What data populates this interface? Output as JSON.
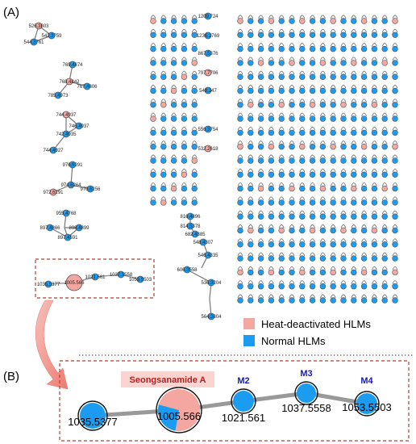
{
  "panels": {
    "a": "(A)",
    "b": "(B)"
  },
  "legend": {
    "heat": {
      "label": "Heat-deactivated HLMs",
      "color": "#f4a6a0"
    },
    "normal": {
      "label": "Normal HLMs",
      "color": "#1c9cf0"
    }
  },
  "panel_a": {
    "left_nodes": [
      {
        "label": "526.3803",
        "kind": "heat"
      },
      {
        "label": "542.3759",
        "kind": "normal"
      },
      {
        "label": "544.3761",
        "kind": "normal"
      },
      {
        "label": "769.4874",
        "kind": "normal"
      },
      {
        "label": "768.4842",
        "kind": "heat"
      },
      {
        "label": "767.4806",
        "kind": "normal"
      },
      {
        "label": "785.4973",
        "kind": "normal"
      },
      {
        "label": "744.4937",
        "kind": "heat"
      },
      {
        "label": "746.4937",
        "kind": "normal"
      },
      {
        "label": "742.4935",
        "kind": "normal"
      },
      {
        "label": "744.4927",
        "kind": "normal"
      },
      {
        "label": "976.6291",
        "kind": "normal"
      },
      {
        "label": "974.6264",
        "kind": "normal"
      },
      {
        "label": "972.6291",
        "kind": "heat"
      },
      {
        "label": "970.6256",
        "kind": "normal"
      },
      {
        "label": "955.4768",
        "kind": "normal"
      },
      {
        "label": "897.4866",
        "kind": "normal"
      },
      {
        "label": "898.4899",
        "kind": "normal"
      },
      {
        "label": "897.4591",
        "kind": "normal"
      }
    ],
    "highlight_nodes": [
      {
        "label": "1035.5377",
        "kind": "normal"
      },
      {
        "label": "1005.566",
        "kind": "heat"
      },
      {
        "label": "1021.561",
        "kind": "normal"
      },
      {
        "label": "1037.5558",
        "kind": "normal"
      },
      {
        "label": "1053.5503",
        "kind": "normal"
      }
    ],
    "middle_nodes": [
      {
        "label": "1209.724",
        "kind": "normal"
      },
      {
        "label": "1236.2769",
        "kind": "normal"
      },
      {
        "label": "867.5376",
        "kind": "normal"
      },
      {
        "label": "797.7706",
        "kind": "heat"
      },
      {
        "label": "548.247",
        "kind": "normal"
      },
      {
        "label": "556.3754",
        "kind": "normal"
      },
      {
        "label": "532.2618",
        "kind": "heat"
      },
      {
        "label": "816.4896",
        "kind": "normal"
      },
      {
        "label": "814.5378",
        "kind": "normal"
      },
      {
        "label": "682.4385",
        "kind": "normal"
      },
      {
        "label": "548.4307",
        "kind": "normal"
      },
      {
        "label": "546.4335",
        "kind": "normal"
      },
      {
        "label": "606.3558",
        "kind": "normal"
      },
      {
        "label": "536.3204",
        "kind": "normal"
      },
      {
        "label": "564.3804",
        "kind": "normal"
      }
    ]
  },
  "panel_b": {
    "callout": "Seongsanamide A",
    "nodes": [
      {
        "label": "1035.5377",
        "tag": "",
        "kind": "normal"
      },
      {
        "label": "1005.566",
        "tag": "",
        "kind": "heat"
      },
      {
        "label": "1021.561",
        "tag": "M2",
        "kind": "normal"
      },
      {
        "label": "1037.5558",
        "tag": "M3",
        "kind": "normal"
      },
      {
        "label": "1053.5503",
        "tag": "M4",
        "kind": "normal"
      }
    ]
  }
}
